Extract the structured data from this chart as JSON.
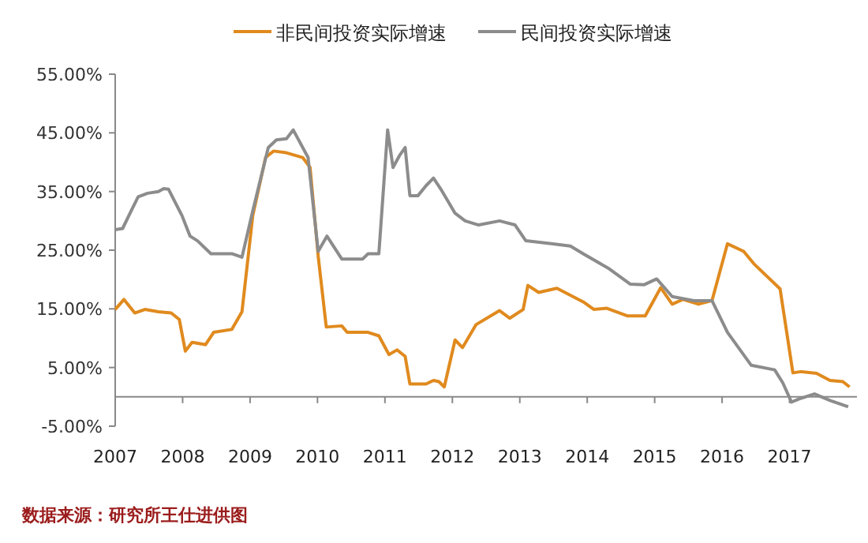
{
  "chart_data": {
    "type": "line",
    "legend": "top",
    "xlim": [
      2007,
      2018
    ],
    "ylim": [
      -5,
      55
    ],
    "xticks": [
      2007,
      2008,
      2009,
      2010,
      2011,
      2012,
      2013,
      2014,
      2015,
      2016,
      2017
    ],
    "yticks": [
      {
        "value": -5,
        "label": "-5.00%"
      },
      {
        "value": 5,
        "label": "5.00%"
      },
      {
        "value": 15,
        "label": "15.00%"
      },
      {
        "value": 25,
        "label": "25.00%"
      },
      {
        "value": 35,
        "label": "35.00%"
      },
      {
        "value": 45,
        "label": "45.00%"
      },
      {
        "value": 55,
        "label": "55.00%"
      }
    ],
    "annotations": [
      "数据来源：研究所王仕进供图"
    ],
    "series": [
      {
        "name": "非民间投资实际增速",
        "color": "#e08a1e",
        "x": [
          2007.0,
          2007.13,
          2007.29,
          2007.44,
          2007.64,
          2007.83,
          2007.95,
          2008.04,
          2008.14,
          2008.34,
          2008.46,
          2008.73,
          2008.88,
          2009.04,
          2009.23,
          2009.35,
          2009.54,
          2009.78,
          2009.89,
          2010.01,
          2010.13,
          2010.36,
          2010.44,
          2010.75,
          2010.91,
          2011.06,
          2011.18,
          2011.3,
          2011.37,
          2011.61,
          2011.72,
          2011.8,
          2011.88,
          2012.04,
          2012.15,
          2012.35,
          2012.7,
          2012.85,
          2013.05,
          2013.12,
          2013.28,
          2013.55,
          2013.94,
          2014.1,
          2014.29,
          2014.6,
          2014.86,
          2015.09,
          2015.26,
          2015.42,
          2015.65,
          2015.85,
          2016.08,
          2016.32,
          2016.47,
          2016.86,
          2017.05,
          2017.17,
          2017.4,
          2017.6,
          2017.79,
          2017.89
        ],
        "values": [
          14.9,
          16.6,
          14.3,
          14.9,
          14.5,
          14.3,
          13.2,
          7.8,
          9.3,
          8.9,
          11.0,
          11.5,
          14.5,
          30.9,
          40.8,
          41.9,
          41.6,
          40.8,
          39.1,
          24.0,
          11.9,
          12.1,
          11.0,
          11.0,
          10.4,
          7.2,
          8.0,
          6.9,
          2.2,
          2.2,
          2.8,
          2.6,
          1.7,
          9.7,
          8.4,
          12.3,
          14.7,
          13.4,
          14.9,
          19.0,
          17.8,
          18.5,
          16.2,
          14.9,
          15.1,
          13.8,
          13.8,
          18.6,
          15.8,
          16.6,
          15.8,
          16.4,
          26.1,
          24.8,
          22.7,
          18.4,
          4.1,
          4.3,
          4.0,
          2.8,
          2.6,
          1.7
        ]
      },
      {
        "name": "民间投资实际增速",
        "color": "#8c8c8c",
        "x": [
          2007.0,
          2007.11,
          2007.25,
          2007.34,
          2007.48,
          2007.64,
          2007.72,
          2007.79,
          2007.99,
          2008.11,
          2008.22,
          2008.42,
          2008.73,
          2008.88,
          2009.04,
          2009.27,
          2009.39,
          2009.54,
          2009.64,
          2009.86,
          2010.01,
          2010.14,
          2010.36,
          2010.67,
          2010.75,
          2010.91,
          2011.04,
          2011.12,
          2011.22,
          2011.3,
          2011.37,
          2011.49,
          2011.61,
          2011.72,
          2011.84,
          2012.04,
          2012.19,
          2012.39,
          2012.7,
          2012.93,
          2013.09,
          2013.47,
          2013.75,
          2013.94,
          2014.33,
          2014.64,
          2014.84,
          2015.03,
          2015.26,
          2015.58,
          2015.85,
          2016.08,
          2016.43,
          2016.78,
          2016.9,
          2017.03,
          2017.13,
          2017.37,
          2017.6,
          2017.87
        ],
        "values": [
          28.5,
          28.7,
          32.0,
          34.1,
          34.7,
          35.0,
          35.5,
          35.4,
          30.9,
          27.4,
          26.6,
          24.4,
          24.4,
          23.8,
          31.7,
          42.5,
          43.8,
          44.0,
          45.5,
          40.8,
          24.8,
          27.4,
          23.5,
          23.5,
          24.4,
          24.4,
          45.5,
          39.1,
          41.2,
          42.5,
          34.3,
          34.3,
          36.0,
          37.3,
          35.2,
          31.3,
          30.0,
          29.3,
          30.0,
          29.3,
          26.6,
          26.1,
          25.7,
          24.4,
          21.8,
          19.2,
          19.1,
          20.1,
          17.1,
          16.4,
          16.4,
          11.0,
          5.4,
          4.6,
          2.4,
          -0.9,
          -0.4,
          0.5,
          -0.6,
          -1.7
        ]
      }
    ]
  }
}
